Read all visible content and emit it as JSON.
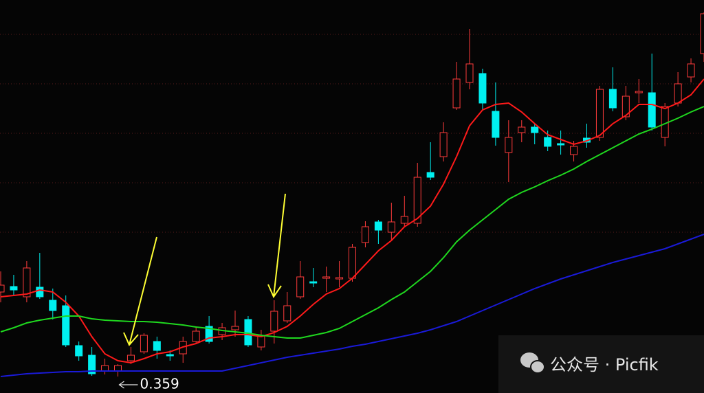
{
  "chart_data": {
    "type": "candlestick",
    "ylim": [
      0.347,
      0.633
    ],
    "up_color": "#ff3b3b",
    "down_color": "#00f0f0",
    "open": [
      0.4205,
      0.4245,
      0.417,
      0.424,
      0.4145,
      0.4105,
      0.3815,
      0.3745,
      0.363,
      0.363,
      0.3705,
      0.377,
      0.3845,
      0.375,
      0.3755,
      0.3845,
      0.3955,
      0.3895,
      0.393,
      0.4005,
      0.3805,
      0.392,
      0.3995,
      0.417,
      0.428,
      0.4305,
      0.43,
      0.4305,
      0.4565,
      0.4715,
      0.464,
      0.4705,
      0.4705,
      0.5075,
      0.519,
      0.5545,
      0.573,
      0.5795,
      0.552,
      0.522,
      0.5365,
      0.5405,
      0.533,
      0.5285,
      0.5205,
      0.5325,
      0.533,
      0.568,
      0.548,
      0.5655,
      0.5655,
      0.533,
      0.558,
      0.577,
      0.594
    ],
    "high": [
      0.4355,
      0.433,
      0.443,
      0.449,
      0.423,
      0.418,
      0.3845,
      0.3805,
      0.372,
      0.368,
      0.3805,
      0.3905,
      0.388,
      0.378,
      0.388,
      0.3955,
      0.403,
      0.398,
      0.407,
      0.403,
      0.393,
      0.4145,
      0.4205,
      0.443,
      0.438,
      0.439,
      0.443,
      0.4555,
      0.472,
      0.473,
      0.4855,
      0.4905,
      0.5145,
      0.5295,
      0.544,
      0.588,
      0.612,
      0.583,
      0.573,
      0.5455,
      0.5455,
      0.543,
      0.538,
      0.538,
      0.5305,
      0.543,
      0.5705,
      0.584,
      0.5705,
      0.5755,
      0.594,
      0.558,
      0.5805,
      0.5905,
      0.624
    ],
    "low": [
      0.413,
      0.418,
      0.413,
      0.4155,
      0.4005,
      0.3805,
      0.3705,
      0.3595,
      0.3605,
      0.359,
      0.368,
      0.3755,
      0.372,
      0.3705,
      0.369,
      0.383,
      0.383,
      0.3855,
      0.388,
      0.3805,
      0.378,
      0.383,
      0.398,
      0.4155,
      0.424,
      0.4205,
      0.424,
      0.428,
      0.453,
      0.4555,
      0.458,
      0.468,
      0.468,
      0.502,
      0.5155,
      0.553,
      0.568,
      0.553,
      0.527,
      0.5005,
      0.5295,
      0.528,
      0.523,
      0.5205,
      0.5155,
      0.5255,
      0.5305,
      0.552,
      0.5455,
      0.558,
      0.538,
      0.5265,
      0.5555,
      0.573,
      0.588
    ],
    "close": [
      0.4255,
      0.422,
      0.438,
      0.417,
      0.407,
      0.382,
      0.374,
      0.361,
      0.367,
      0.367,
      0.3745,
      0.389,
      0.378,
      0.374,
      0.3845,
      0.392,
      0.3845,
      0.3945,
      0.3955,
      0.382,
      0.389,
      0.4065,
      0.4105,
      0.4315,
      0.427,
      0.4315,
      0.431,
      0.453,
      0.468,
      0.4655,
      0.4715,
      0.4755,
      0.504,
      0.504,
      0.5365,
      0.5755,
      0.5865,
      0.558,
      0.533,
      0.533,
      0.5405,
      0.5365,
      0.5265,
      0.5275,
      0.5265,
      0.5295,
      0.568,
      0.5545,
      0.563,
      0.5665,
      0.5405,
      0.5555,
      0.572,
      0.5865,
      0.623
    ],
    "lines": [
      {
        "color": "#ff1a1a",
        "values": [
          0.417,
          0.418,
          0.419,
          0.422,
          0.4205,
          0.413,
          0.403,
          0.388,
          0.3755,
          0.3705,
          0.369,
          0.372,
          0.3755,
          0.377,
          0.3805,
          0.383,
          0.387,
          0.388,
          0.3895,
          0.3895,
          0.388,
          0.391,
          0.3955,
          0.403,
          0.4115,
          0.419,
          0.423,
          0.4305,
          0.4405,
          0.4505,
          0.458,
          0.468,
          0.474,
          0.483,
          0.499,
          0.519,
          0.5415,
          0.553,
          0.557,
          0.558,
          0.5515,
          0.543,
          0.535,
          0.5315,
          0.528,
          0.5305,
          0.5345,
          0.543,
          0.549,
          0.557,
          0.557,
          0.554,
          0.558,
          0.564,
          0.5755
        ]
      },
      {
        "color": "#1fd81f",
        "values": [
          0.3915,
          0.3945,
          0.398,
          0.4,
          0.4015,
          0.403,
          0.403,
          0.401,
          0.4,
          0.3995,
          0.399,
          0.399,
          0.3985,
          0.3975,
          0.3965,
          0.395,
          0.394,
          0.3925,
          0.3915,
          0.3905,
          0.389,
          0.388,
          0.387,
          0.387,
          0.389,
          0.391,
          0.394,
          0.399,
          0.404,
          0.409,
          0.415,
          0.4205,
          0.428,
          0.4355,
          0.4455,
          0.457,
          0.4655,
          0.473,
          0.4805,
          0.488,
          0.493,
          0.497,
          0.5015,
          0.5055,
          0.51,
          0.5155,
          0.5205,
          0.5255,
          0.5305,
          0.5355,
          0.539,
          0.543,
          0.547,
          0.5515,
          0.5555
        ]
      },
      {
        "color": "#1a1ad8",
        "values": [
          0.359,
          0.36,
          0.361,
          0.3615,
          0.362,
          0.3625,
          0.3625,
          0.363,
          0.363,
          0.363,
          0.363,
          0.363,
          0.363,
          0.363,
          0.363,
          0.363,
          0.363,
          0.363,
          0.365,
          0.367,
          0.369,
          0.371,
          0.373,
          0.3745,
          0.376,
          0.3775,
          0.379,
          0.381,
          0.3825,
          0.3845,
          0.3865,
          0.3885,
          0.3905,
          0.393,
          0.396,
          0.399,
          0.403,
          0.407,
          0.411,
          0.415,
          0.419,
          0.423,
          0.4265,
          0.43,
          0.433,
          0.436,
          0.439,
          0.442,
          0.4445,
          0.447,
          0.4495,
          0.452,
          0.4555,
          0.459,
          0.4625
        ]
      }
    ],
    "low_marker": 0.359
  },
  "watermark": "公众号 · Picfik"
}
